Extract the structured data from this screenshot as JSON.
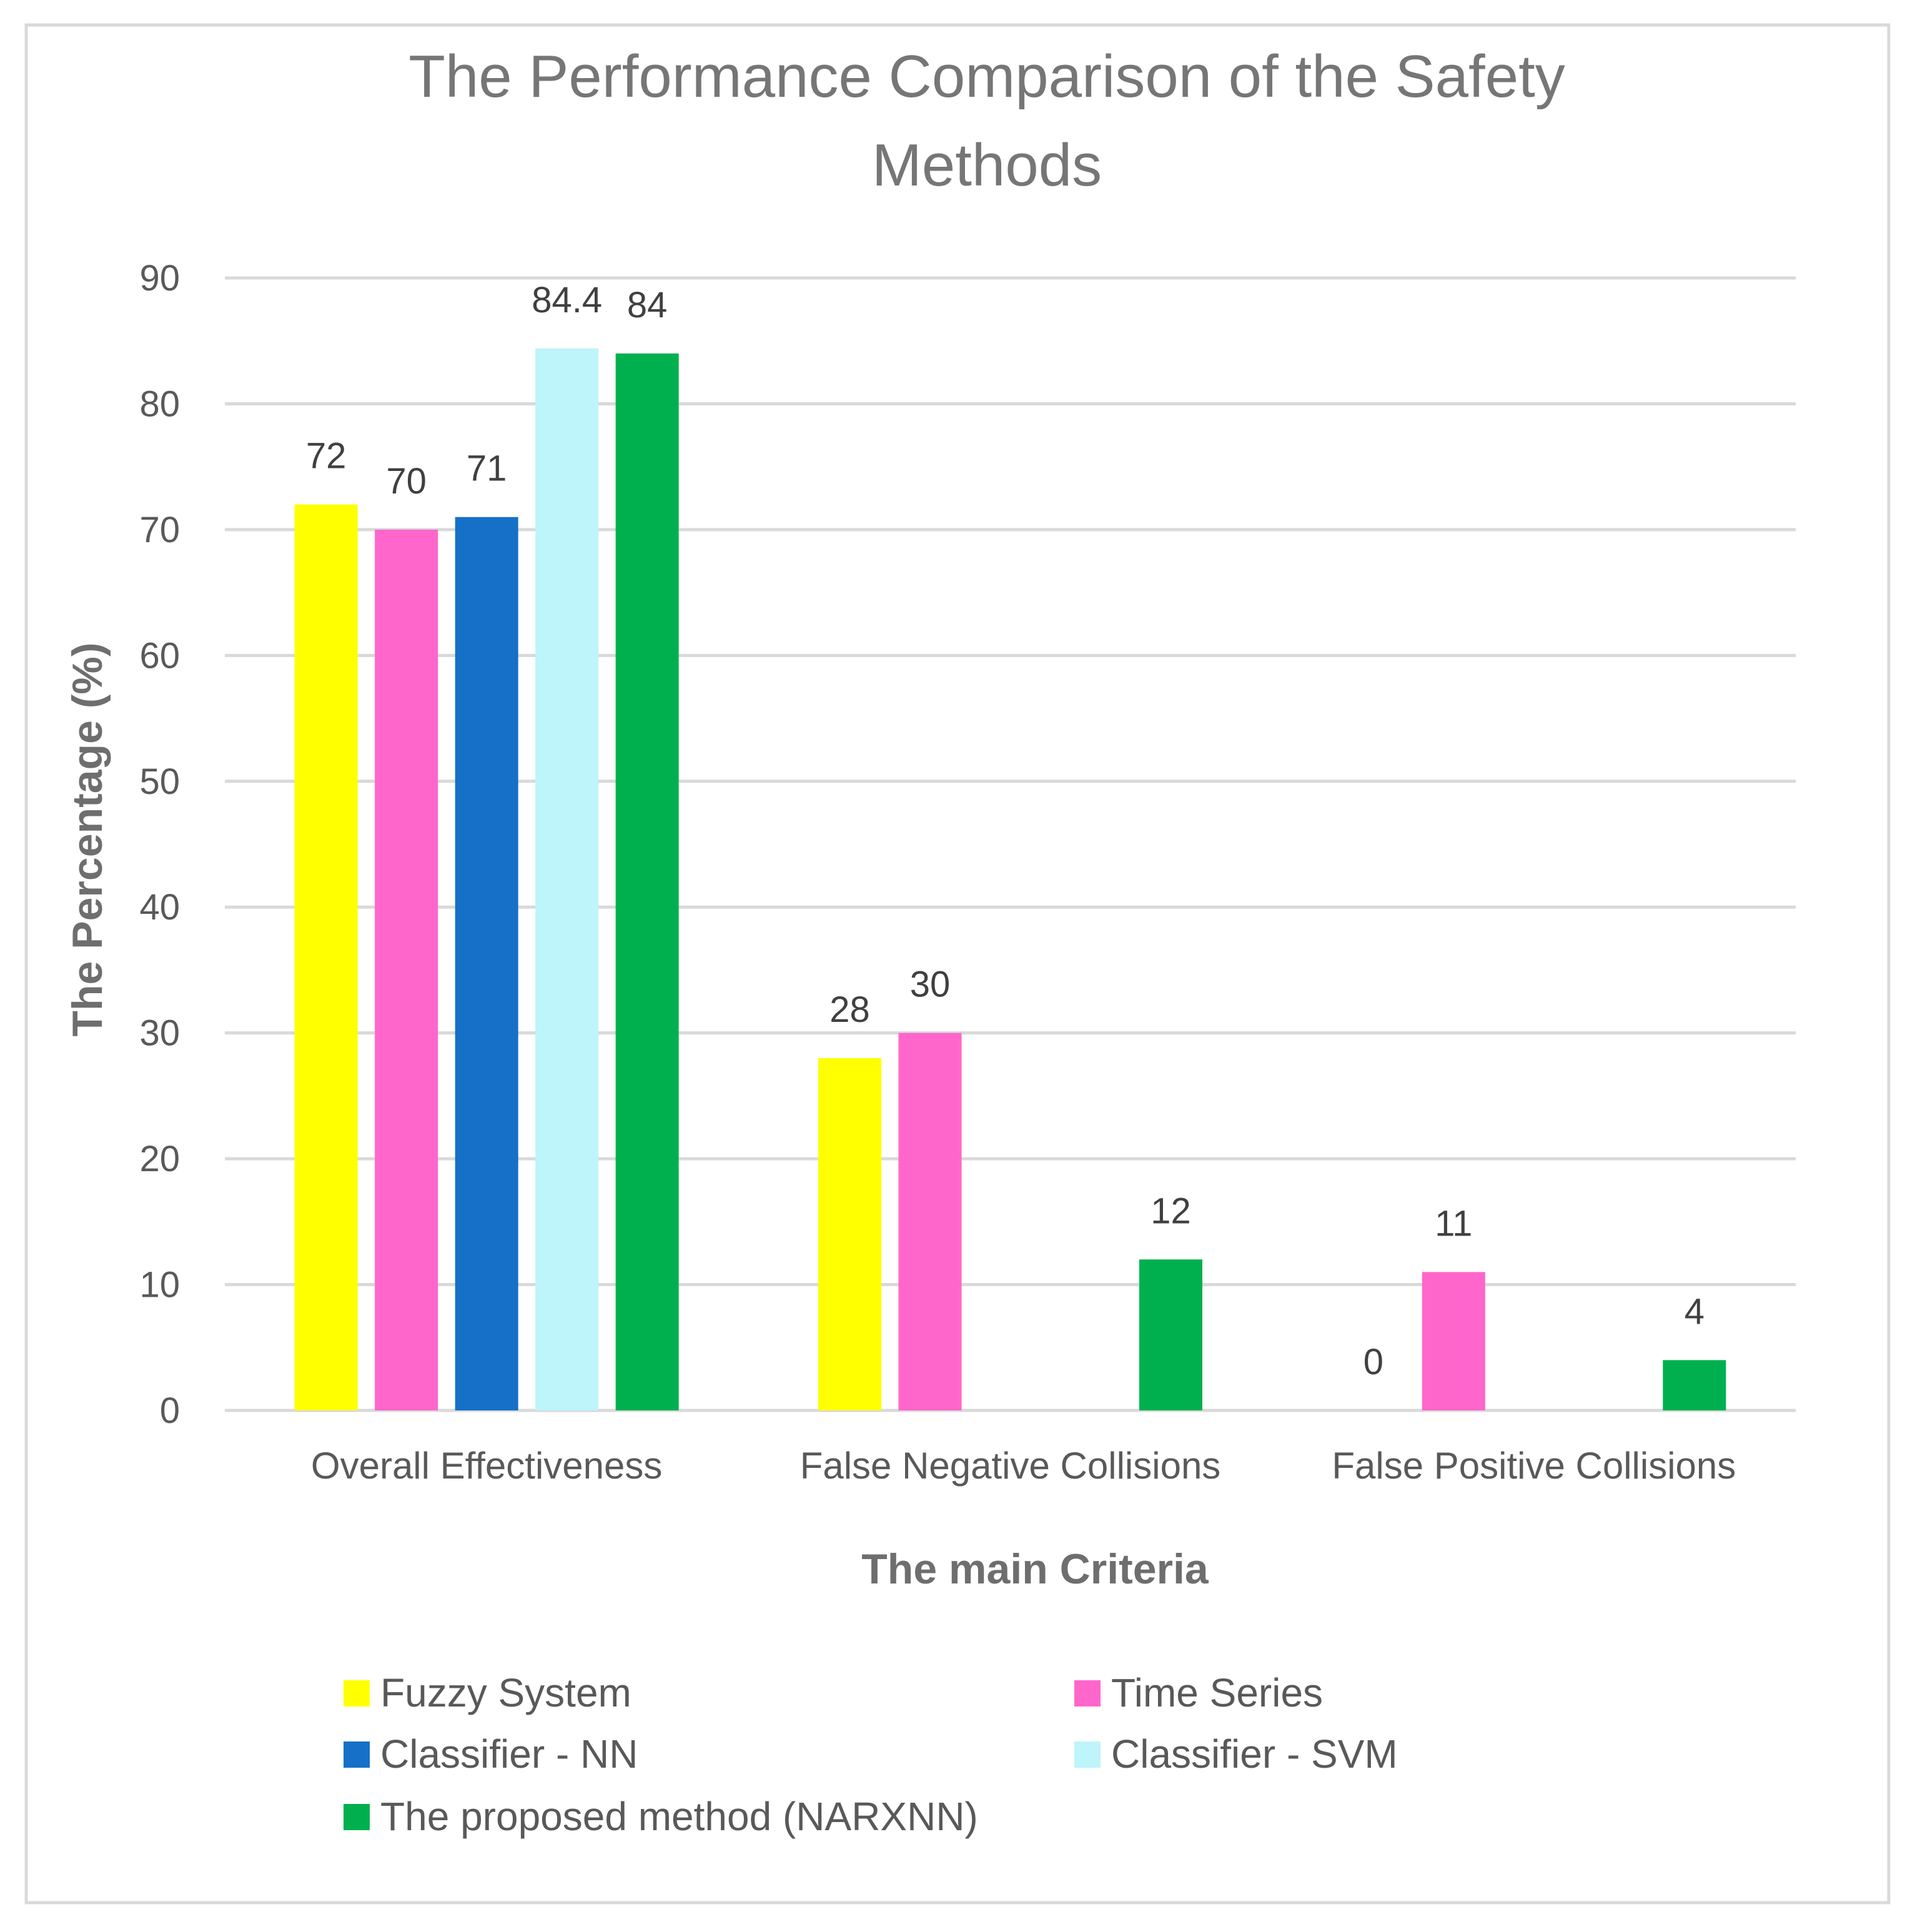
{
  "chart_data": {
    "type": "bar",
    "title_lines": [
      "The Performance Comparison of the Safety",
      "Methods"
    ],
    "xlabel": "The main Criteria",
    "ylabel": "The Percentage (%)",
    "ylim": [
      0,
      90
    ],
    "yticks": [
      "0",
      "10",
      "20",
      "30",
      "40",
      "50",
      "60",
      "70",
      "80",
      "90"
    ],
    "categories": [
      "Overall Effectiveness",
      "False Negative Collisions",
      "False Positive Collisions"
    ],
    "series": [
      {
        "name": "Fuzzy System",
        "color": "#FFFF00",
        "values": [
          72,
          28,
          0
        ],
        "labels": [
          "72",
          "28",
          "0"
        ]
      },
      {
        "name": "Time Series",
        "color": "#FF66CC",
        "values": [
          70,
          30,
          11
        ],
        "labels": [
          "70",
          "30",
          "11"
        ]
      },
      {
        "name": "Classifier - NN",
        "color": "#1670C8",
        "values": [
          71,
          null,
          null
        ],
        "labels": [
          "71",
          null,
          null
        ]
      },
      {
        "name": "Classifier - SVM",
        "color": "#BDF5FA",
        "values": [
          84.4,
          null,
          null
        ],
        "labels": [
          "84.4",
          null,
          null
        ]
      },
      {
        "name": "The proposed method (NARXNN)",
        "color": "#00B04E",
        "values": [
          84,
          12,
          4
        ],
        "labels": [
          "84",
          "12",
          "4"
        ]
      }
    ],
    "grid": true,
    "legend_position": "bottom"
  }
}
